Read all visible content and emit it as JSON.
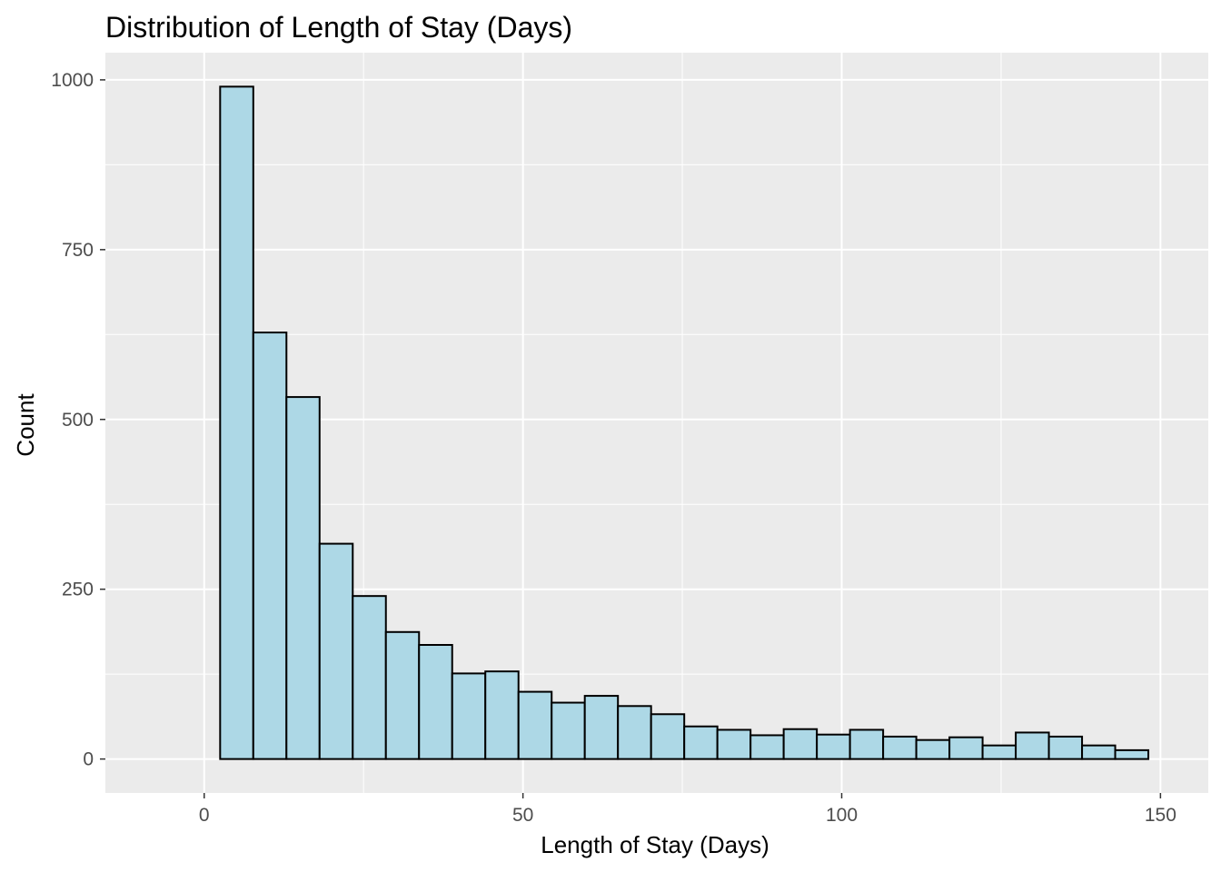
{
  "chart_data": {
    "type": "bar",
    "title": "Distribution of Length of Stay (Days)",
    "xlabel": "Length of Stay (Days)",
    "ylabel": "Count",
    "xlim": [
      -15.5,
      157.5
    ],
    "ylim": [
      -50,
      1040
    ],
    "x_ticks": [
      0,
      50,
      100,
      150
    ],
    "y_ticks": [
      0,
      250,
      500,
      750,
      1000
    ],
    "grid": true,
    "fill_color": "#ADD8E6",
    "edge_color": "#000000",
    "panel_background": "#EBEBEB",
    "grid_color": "#FFFFFF",
    "bins": [
      {
        "start": 2.5,
        "end": 7.7,
        "count": 990
      },
      {
        "start": 7.7,
        "end": 12.9,
        "count": 628
      },
      {
        "start": 12.9,
        "end": 18.1,
        "count": 533
      },
      {
        "start": 18.1,
        "end": 23.3,
        "count": 317
      },
      {
        "start": 23.3,
        "end": 28.5,
        "count": 240
      },
      {
        "start": 28.5,
        "end": 33.7,
        "count": 187
      },
      {
        "start": 33.7,
        "end": 38.9,
        "count": 168
      },
      {
        "start": 38.9,
        "end": 44.1,
        "count": 126
      },
      {
        "start": 44.1,
        "end": 49.3,
        "count": 129
      },
      {
        "start": 49.3,
        "end": 54.5,
        "count": 99
      },
      {
        "start": 54.5,
        "end": 59.7,
        "count": 83
      },
      {
        "start": 59.7,
        "end": 64.9,
        "count": 93
      },
      {
        "start": 64.9,
        "end": 70.1,
        "count": 78
      },
      {
        "start": 70.1,
        "end": 75.3,
        "count": 66
      },
      {
        "start": 75.3,
        "end": 80.5,
        "count": 48
      },
      {
        "start": 80.5,
        "end": 85.7,
        "count": 43
      },
      {
        "start": 85.7,
        "end": 90.9,
        "count": 35
      },
      {
        "start": 90.9,
        "end": 96.1,
        "count": 44
      },
      {
        "start": 96.1,
        "end": 101.3,
        "count": 36
      },
      {
        "start": 101.3,
        "end": 106.5,
        "count": 43
      },
      {
        "start": 106.5,
        "end": 111.7,
        "count": 33
      },
      {
        "start": 111.7,
        "end": 116.9,
        "count": 28
      },
      {
        "start": 116.9,
        "end": 122.1,
        "count": 32
      },
      {
        "start": 122.1,
        "end": 127.3,
        "count": 20
      },
      {
        "start": 127.3,
        "end": 132.5,
        "count": 39
      },
      {
        "start": 132.5,
        "end": 137.7,
        "count": 33
      },
      {
        "start": 137.7,
        "end": 142.9,
        "count": 20
      },
      {
        "start": 142.9,
        "end": 148.1,
        "count": 13
      }
    ]
  }
}
